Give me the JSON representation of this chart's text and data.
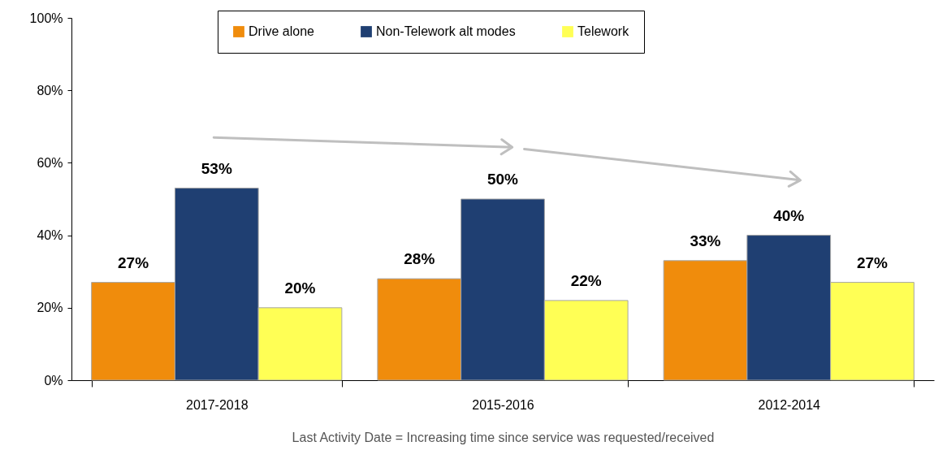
{
  "chart_data": {
    "type": "bar",
    "categories": [
      "2017-2018",
      "2015-2016",
      "2012-2014"
    ],
    "series": [
      {
        "name": "Drive alone",
        "color": "#f08c0c",
        "values": [
          27,
          28,
          33
        ],
        "value_labels": [
          "27%",
          "28%",
          "33%"
        ]
      },
      {
        "name": "Non-Telework alt modes",
        "color": "#1f3f72",
        "values": [
          53,
          50,
          40
        ],
        "value_labels": [
          "53%",
          "50%",
          "40%"
        ]
      },
      {
        "name": "Telework",
        "color": "#ffff55",
        "values": [
          20,
          22,
          27
        ],
        "value_labels": [
          "20%",
          "22%",
          "27%"
        ]
      }
    ],
    "ylim": [
      0,
      100
    ],
    "yticks": [
      {
        "value": 0,
        "label": "0%"
      },
      {
        "value": 20,
        "label": "20%"
      },
      {
        "value": 40,
        "label": "40%"
      },
      {
        "value": 60,
        "label": "60%"
      },
      {
        "value": 80,
        "label": "80%"
      },
      {
        "value": 100,
        "label": "100%"
      }
    ],
    "xlabel": "Last Activity Date = Increasing time since service was requested/received",
    "legend": "top",
    "grid": false
  }
}
